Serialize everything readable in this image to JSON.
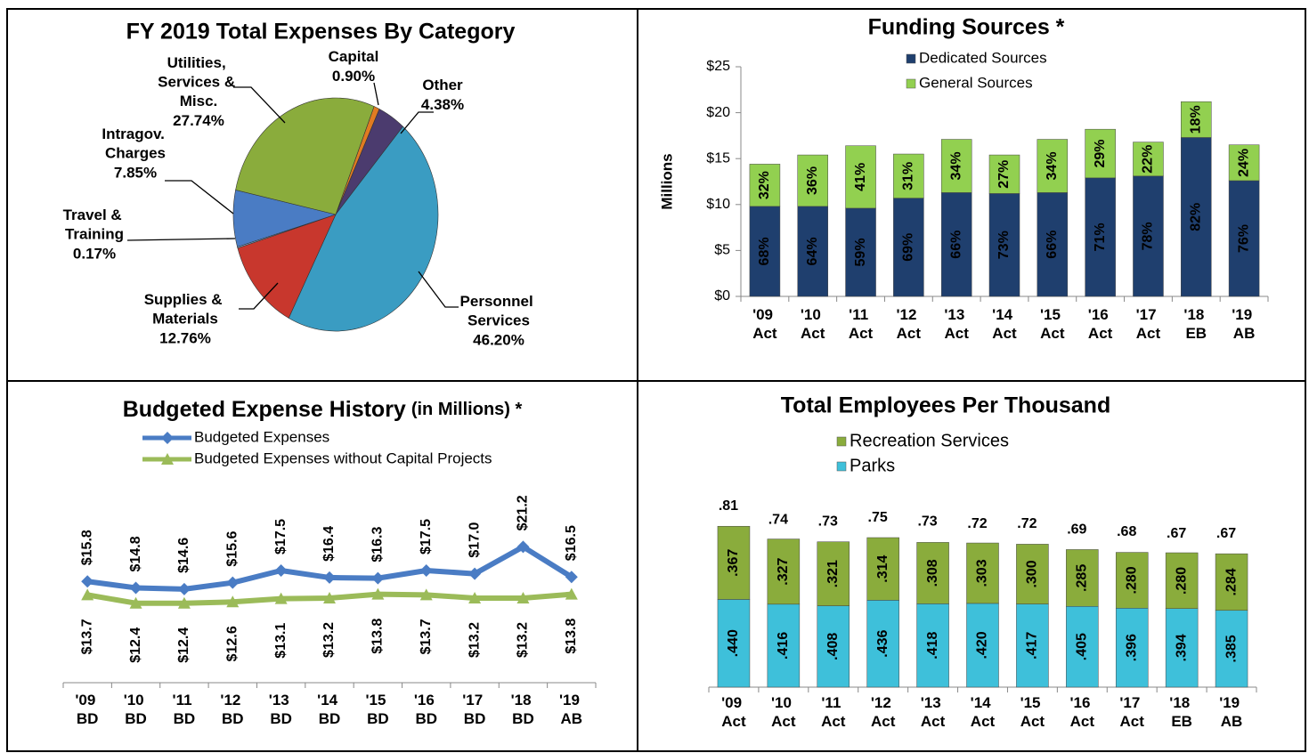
{
  "chart_data": [
    {
      "type": "pie",
      "title": "FY 2019 Total Expenses By Category",
      "categories": [
        "Capital",
        "Other",
        "Personnel Services",
        "Supplies & Materials",
        "Travel & Training",
        "Intragov. Charges",
        "Utilities, Services & Misc."
      ],
      "values": [
        0.9,
        4.38,
        46.2,
        12.76,
        0.17,
        7.85,
        27.74
      ],
      "value_labels": [
        "0.90%",
        "4.38%",
        "46.20%",
        "12.76%",
        "0.17%",
        "7.85%",
        "27.74%"
      ],
      "colors": [
        "#e07b22",
        "#4b3b6e",
        "#3a9cc2",
        "#c8372d",
        "#7fb0d8",
        "#4a7cc4",
        "#8aac3c"
      ]
    },
    {
      "type": "bar",
      "stacked": true,
      "title": "Funding Sources *",
      "ylabel": "Millions",
      "categories": [
        "'09 Act",
        "'10 Act",
        "'11 Act",
        "'12 Act",
        "'13 Act",
        "'14 Act",
        "'15 Act",
        "'16 Act",
        "'17 Act",
        "'18 EB",
        "'19 AB"
      ],
      "series": [
        {
          "name": "Dedicated Sources",
          "color": "#1f3f6e",
          "label_color": "#ffffff",
          "values": [
            9.8,
            9.8,
            9.6,
            10.7,
            11.3,
            11.2,
            11.3,
            12.9,
            13.1,
            17.3,
            12.6
          ],
          "labels": [
            "68%",
            "64%",
            "59%",
            "69%",
            "66%",
            "73%",
            "66%",
            "71%",
            "78%",
            "82%",
            "76%"
          ]
        },
        {
          "name": "General Sources",
          "color": "#92d050",
          "label_color": "#000000",
          "values": [
            4.6,
            5.6,
            6.8,
            4.8,
            5.8,
            4.2,
            5.8,
            5.3,
            3.7,
            3.9,
            3.9
          ],
          "labels": [
            "32%",
            "36%",
            "41%",
            "31%",
            "34%",
            "27%",
            "34%",
            "29%",
            "22%",
            "18%",
            "24%"
          ]
        }
      ],
      "ylim": [
        0,
        25
      ],
      "yticks": [
        {
          "value": 0,
          "label": "$0"
        },
        {
          "value": 5,
          "label": "$5"
        },
        {
          "value": 10,
          "label": "$10"
        },
        {
          "value": 15,
          "label": "$15"
        },
        {
          "value": 20,
          "label": "$20"
        },
        {
          "value": 25,
          "label": "$25"
        }
      ]
    },
    {
      "type": "line",
      "title": "Budgeted Expense History",
      "subtitle": "(in Millions) *",
      "categories": [
        "'09 BD",
        "'10 BD",
        "'11 BD",
        "'12 BD",
        "'13 BD",
        "'14 BD",
        "'15 BD",
        "'16 BD",
        "'17 BD",
        "'18 BD",
        "'19 AB"
      ],
      "series": [
        {
          "name": "Budgeted Expenses",
          "color": "#4a7cc4",
          "marker": "diamond",
          "values": [
            15.8,
            14.8,
            14.6,
            15.6,
            17.5,
            16.4,
            16.3,
            17.5,
            17.0,
            21.2,
            16.5
          ],
          "value_labels": [
            "$15.8",
            "$14.8",
            "$14.6",
            "$15.6",
            "$17.5",
            "$16.4",
            "$16.3",
            "$17.5",
            "$17.0",
            "$21.2",
            "$16.5"
          ]
        },
        {
          "name": "Budgeted Expenses without Capital Projects",
          "color": "#9bbb59",
          "marker": "triangle",
          "values": [
            13.7,
            12.4,
            12.4,
            12.6,
            13.1,
            13.2,
            13.8,
            13.7,
            13.2,
            13.2,
            13.8
          ],
          "value_labels": [
            "$13.7",
            "$12.4",
            "$12.4",
            "$12.6",
            "$13.1",
            "$13.2",
            "$13.8",
            "$13.7",
            "$13.2",
            "$13.2",
            "$13.8"
          ]
        }
      ],
      "ylim": [
        0,
        30
      ]
    },
    {
      "type": "bar",
      "stacked": true,
      "title": "Total Employees Per Thousand",
      "categories": [
        "'09 Act",
        "'10 Act",
        "'11 Act",
        "'12 Act",
        "'13 Act",
        "'14 Act",
        "'15 Act",
        "'16 Act",
        "'17 Act",
        "'18 EB",
        "'19 AB"
      ],
      "series": [
        {
          "name": "Parks",
          "color": "#3ec0da",
          "label_color": "#ffffff",
          "values": [
            0.44,
            0.416,
            0.408,
            0.436,
            0.418,
            0.42,
            0.417,
            0.405,
            0.396,
            0.394,
            0.385
          ],
          "labels": [
            ".440",
            ".416",
            ".408",
            ".436",
            ".418",
            ".420",
            ".417",
            ".405",
            ".396",
            ".394",
            ".385"
          ]
        },
        {
          "name": "Recreation Services",
          "color": "#8aac3c",
          "label_color": "#000000",
          "values": [
            0.367,
            0.327,
            0.321,
            0.314,
            0.308,
            0.303,
            0.3,
            0.285,
            0.28,
            0.28,
            0.284
          ],
          "labels": [
            ".367",
            ".327",
            ".321",
            ".314",
            ".308",
            ".303",
            ".300",
            ".285",
            ".280",
            ".280",
            ".284"
          ]
        }
      ],
      "totals": [
        0.81,
        0.74,
        0.73,
        0.75,
        0.73,
        0.72,
        0.72,
        0.69,
        0.68,
        0.67,
        0.67
      ],
      "total_labels": [
        ".81",
        ".74",
        ".73",
        ".75",
        ".73",
        ".72",
        ".72",
        ".69",
        ".68",
        ".67",
        ".67"
      ],
      "legend_order": [
        1,
        0
      ],
      "ylim": [
        0,
        1
      ]
    }
  ]
}
